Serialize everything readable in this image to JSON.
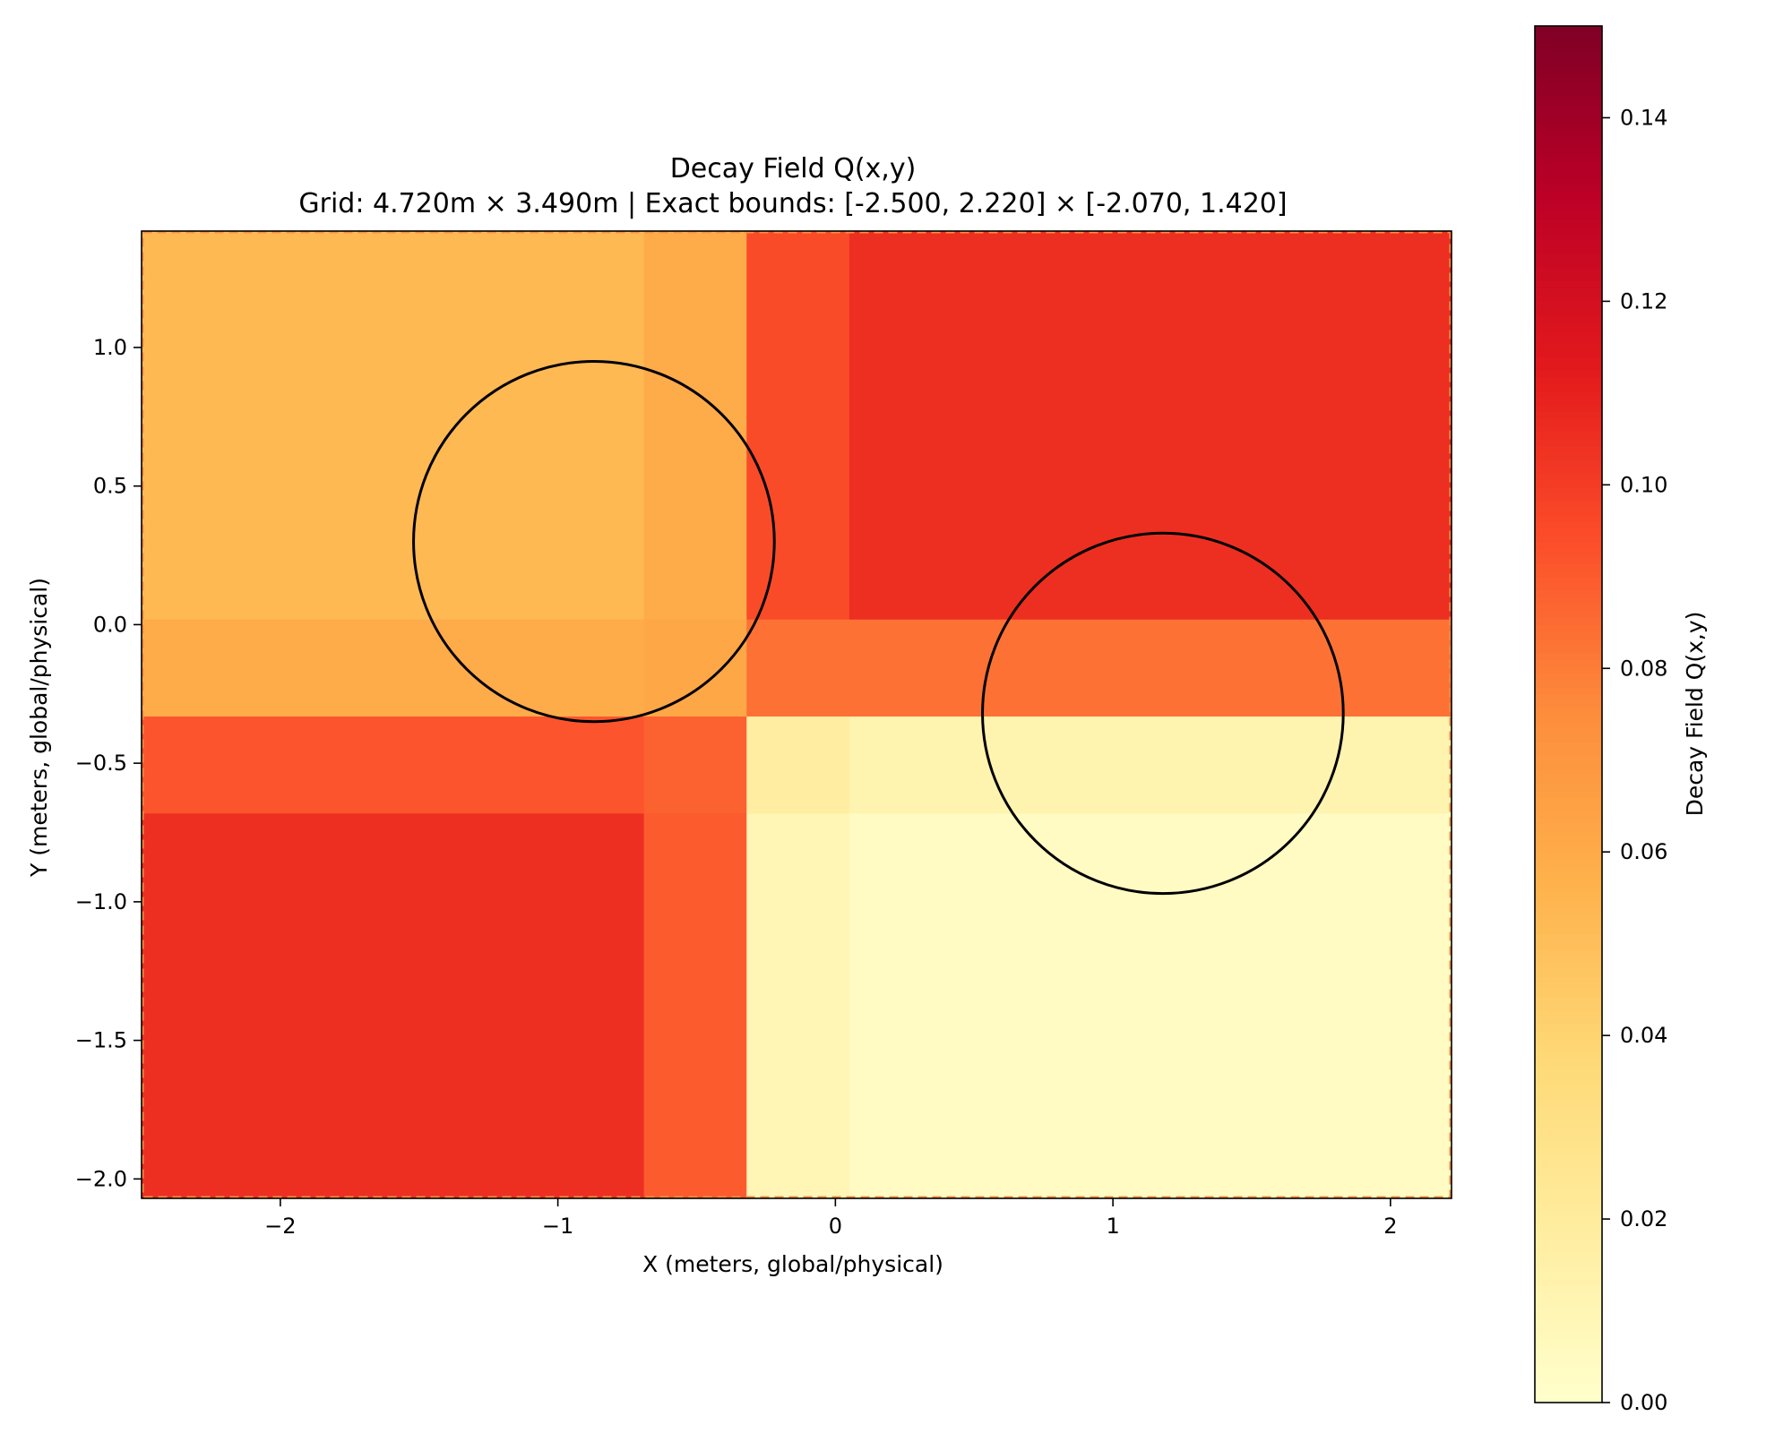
{
  "chart_data": [
    {
      "type": "heatmap",
      "title": "Decay Field Q(x,y)",
      "subtitle": "Grid: 4.720m × 3.490m | Exact bounds: [-2.500, 2.220] × [-2.070, 1.420]",
      "xlabel": "X (meters, global/physical)",
      "ylabel": "Y (meters, global/physical)",
      "xlim": [
        -2.5,
        2.22
      ],
      "ylim": [
        -2.07,
        1.42
      ],
      "xticks": [
        -2,
        -1,
        0,
        1,
        2
      ],
      "xtick_labels": [
        "−2",
        "−1",
        "0",
        "1",
        "2"
      ],
      "yticks": [
        -2.0,
        -1.5,
        -1.0,
        -0.5,
        0.0,
        0.5,
        1.0
      ],
      "ytick_labels": [
        "−2.0",
        "−1.5",
        "−1.0",
        "−0.5",
        "0.0",
        "0.5",
        "1.0"
      ],
      "x_edges": [
        -2.5,
        -0.69,
        -0.32,
        0.05,
        2.22
      ],
      "y_edges": [
        -2.07,
        -0.68,
        -0.33,
        0.02,
        1.42
      ],
      "z": [
        [
          0.105,
          0.09,
          0.01,
          0.004
        ],
        [
          0.092,
          0.088,
          0.018,
          0.012
        ],
        [
          0.06,
          0.062,
          0.083,
          0.083
        ],
        [
          0.053,
          0.06,
          0.095,
          0.105
        ]
      ],
      "circles": [
        {
          "cx": -0.87,
          "cy": 0.3,
          "r": 0.65
        },
        {
          "cx": 1.18,
          "cy": -0.32,
          "r": 0.65
        }
      ],
      "colormap": "YlOrRd",
      "colormap_stops": [
        "#ffffcc",
        "#ffeda0",
        "#fed976",
        "#feb24c",
        "#fd8d3c",
        "#fc4e2a",
        "#e31a1c",
        "#bd0026",
        "#800026"
      ],
      "grid": false
    }
  ],
  "colorbar": {
    "label": "Decay Field Q(x,y)",
    "range": [
      0,
      0.15
    ],
    "ticks": [
      0.0,
      0.02,
      0.04,
      0.06,
      0.08,
      0.1,
      0.12,
      0.14
    ],
    "tick_labels": [
      "0.00",
      "0.02",
      "0.04",
      "0.06",
      "0.08",
      "0.10",
      "0.12",
      "0.14"
    ]
  }
}
